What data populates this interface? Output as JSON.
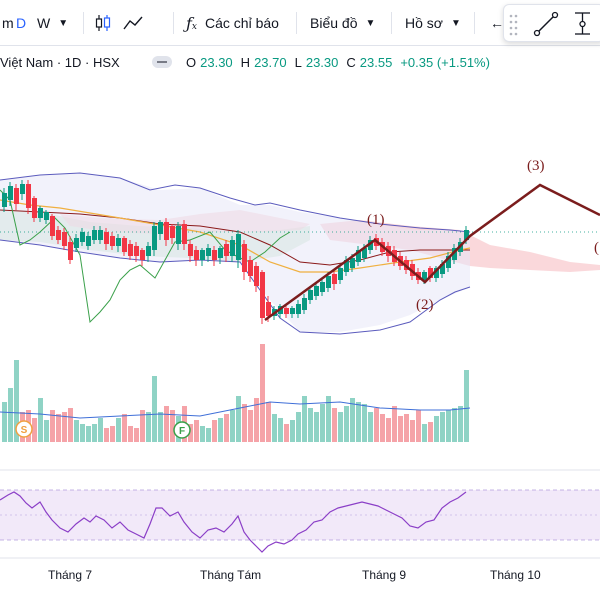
{
  "toolbar": {
    "m_label": "m",
    "d_label": "D",
    "w_label": "W",
    "indicators_label": "Các chỉ báo",
    "chart_type_label": "Biểu đồ",
    "profile_label": "Hồ sơ",
    "back_arrow": "←"
  },
  "legend": {
    "symbol": "Việt Nam · 1D · HSX",
    "open_label": "O",
    "open": "23.30",
    "high_label": "H",
    "high": "23.70",
    "low_label": "L",
    "low": "23.30",
    "close_label": "C",
    "close": "23.55",
    "change": "+0.35 (+1.51%)"
  },
  "annotations": {
    "wave1": "(1)",
    "wave2": "(2)",
    "wave3": "(3)",
    "wave4_partial": "("
  },
  "markers": {
    "split": "S",
    "financial": "F"
  },
  "x_axis": {
    "month_7": "Tháng 7",
    "month_8": "Tháng Tám",
    "month_9": "Tháng 9",
    "month_10": "Tháng 10"
  },
  "colors": {
    "up": "#089981",
    "down": "#f23645",
    "wave_line": "#7b1d1d",
    "bollinger": "#4a4ab0",
    "cloud_red": "#f8c8cc",
    "cloud_green": "#c8e6c9",
    "rsi_band": "#ede0f7",
    "rsi_line": "#8b3fc7"
  }
}
